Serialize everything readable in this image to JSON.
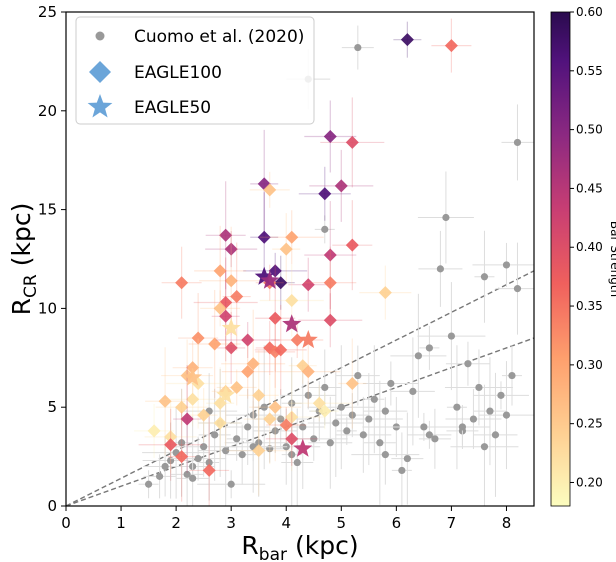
{
  "chart_data": {
    "type": "scatter",
    "xlabel": "R",
    "xlabel_sub": "bar",
    "xlabel_unit": "(kpc)",
    "ylabel": "R",
    "ylabel_sub": "CR",
    "ylabel_unit": "(kpc)",
    "xlim": [
      0,
      8.5
    ],
    "ylim": [
      0,
      25
    ],
    "xticks": [
      0,
      1,
      2,
      3,
      4,
      5,
      6,
      7,
      8
    ],
    "yticks": [
      0,
      5,
      10,
      15,
      20,
      25
    ],
    "grid": false,
    "legend_position": "top-left",
    "colorbar": {
      "label": "Bar Strength",
      "range": [
        0.18,
        0.6
      ],
      "ticks": [
        "0.20",
        "0.25",
        "0.30",
        "0.35",
        "0.40",
        "0.45",
        "0.50",
        "0.55",
        "0.60"
      ],
      "colormap": "magma_r"
    },
    "reference_lines": [
      {
        "style": "dashed",
        "color": "#777777",
        "slope": 1.4
      },
      {
        "style": "dashed",
        "color": "#777777",
        "slope": 1.0
      }
    ],
    "series": [
      {
        "name": "Cuomo et al. (2020)",
        "marker": "circle",
        "color": "#999999",
        "points": [
          [
            1.5,
            1.1
          ],
          [
            1.7,
            1.5
          ],
          [
            1.8,
            2.0
          ],
          [
            1.9,
            2.3
          ],
          [
            2.0,
            2.7
          ],
          [
            2.1,
            3.2
          ],
          [
            2.2,
            1.6
          ],
          [
            2.3,
            2.0
          ],
          [
            2.4,
            2.4
          ],
          [
            2.5,
            3.0
          ],
          [
            2.6,
            2.2
          ],
          [
            2.7,
            3.6
          ],
          [
            2.8,
            4.2
          ],
          [
            2.9,
            2.8
          ],
          [
            3.0,
            1.1
          ],
          [
            3.1,
            3.4
          ],
          [
            3.2,
            2.6
          ],
          [
            3.3,
            4.0
          ],
          [
            3.4,
            4.6
          ],
          [
            3.5,
            3.2
          ],
          [
            3.6,
            5.0
          ],
          [
            3.7,
            2.9
          ],
          [
            3.8,
            3.8
          ],
          [
            3.9,
            4.4
          ],
          [
            4.0,
            3.0
          ],
          [
            4.1,
            5.2
          ],
          [
            4.2,
            2.2
          ],
          [
            4.3,
            4.0
          ],
          [
            4.4,
            5.6
          ],
          [
            4.5,
            3.4
          ],
          [
            4.6,
            4.8
          ],
          [
            4.7,
            6.0
          ],
          [
            4.8,
            3.2
          ],
          [
            4.9,
            4.2
          ],
          [
            5.0,
            5.0
          ],
          [
            5.1,
            3.8
          ],
          [
            5.2,
            4.6
          ],
          [
            5.3,
            6.6
          ],
          [
            5.4,
            3.6
          ],
          [
            5.5,
            4.4
          ],
          [
            5.6,
            5.4
          ],
          [
            5.7,
            3.2
          ],
          [
            5.8,
            4.8
          ],
          [
            5.9,
            6.2
          ],
          [
            6.0,
            4.0
          ],
          [
            6.1,
            1.8
          ],
          [
            6.2,
            2.4
          ],
          [
            6.3,
            5.8
          ],
          [
            6.4,
            7.6
          ],
          [
            6.5,
            4.0
          ],
          [
            6.6,
            8.0
          ],
          [
            6.7,
            3.4
          ],
          [
            6.8,
            12.0
          ],
          [
            6.9,
            14.6
          ],
          [
            7.0,
            8.6
          ],
          [
            7.1,
            5.0
          ],
          [
            7.2,
            3.8
          ],
          [
            7.3,
            7.2
          ],
          [
            7.4,
            4.4
          ],
          [
            7.5,
            6.0
          ],
          [
            7.6,
            11.6
          ],
          [
            7.7,
            4.8
          ],
          [
            7.8,
            3.6
          ],
          [
            7.9,
            5.6
          ],
          [
            8.0,
            12.2
          ],
          [
            8.1,
            6.6
          ],
          [
            8.2,
            18.4
          ],
          [
            8.2,
            11.0
          ],
          [
            8.0,
            4.6
          ],
          [
            7.6,
            3.0
          ],
          [
            4.7,
            14.0
          ],
          [
            5.3,
            23.2
          ],
          [
            4.4,
            21.6
          ],
          [
            2.6,
            4.8
          ],
          [
            3.4,
            3.0
          ],
          [
            4.1,
            2.6
          ],
          [
            2.3,
            1.4
          ],
          [
            6.6,
            3.6
          ],
          [
            7.2,
            4.0
          ],
          [
            5.8,
            2.6
          ]
        ]
      },
      {
        "name": "EAGLE100",
        "marker": "diamond",
        "points": [
          [
            6.2,
            23.6,
            0.58
          ],
          [
            7.0,
            23.3,
            0.36
          ],
          [
            4.8,
            18.7,
            0.5
          ],
          [
            5.2,
            18.4,
            0.4
          ],
          [
            3.6,
            16.3,
            0.5
          ],
          [
            3.7,
            16.0,
            0.26
          ],
          [
            4.7,
            15.8,
            0.56
          ],
          [
            5.0,
            16.2,
            0.46
          ],
          [
            3.6,
            13.6,
            0.56
          ],
          [
            2.9,
            13.7,
            0.46
          ],
          [
            3.0,
            13.0,
            0.46
          ],
          [
            4.1,
            13.6,
            0.3
          ],
          [
            4.0,
            13.0,
            0.26
          ],
          [
            5.2,
            13.2,
            0.38
          ],
          [
            4.8,
            12.7,
            0.44
          ],
          [
            3.8,
            11.9,
            0.56
          ],
          [
            3.9,
            11.3,
            0.58
          ],
          [
            2.1,
            11.3,
            0.34
          ],
          [
            2.8,
            11.9,
            0.3
          ],
          [
            3.0,
            11.4,
            0.28
          ],
          [
            3.7,
            11.3,
            0.34
          ],
          [
            4.4,
            11.2,
            0.42
          ],
          [
            4.8,
            11.3,
            0.34
          ],
          [
            2.9,
            10.3,
            0.38
          ],
          [
            3.1,
            10.6,
            0.34
          ],
          [
            2.8,
            10.0,
            0.26
          ],
          [
            5.8,
            10.8,
            0.24
          ],
          [
            4.1,
            10.4,
            0.22
          ],
          [
            2.9,
            9.6,
            0.42
          ],
          [
            3.8,
            9.5,
            0.38
          ],
          [
            4.2,
            8.4,
            0.34
          ],
          [
            4.8,
            9.4,
            0.4
          ],
          [
            3.0,
            8.0,
            0.4
          ],
          [
            2.4,
            8.5,
            0.32
          ],
          [
            2.7,
            8.2,
            0.3
          ],
          [
            3.3,
            8.4,
            0.42
          ],
          [
            3.7,
            8.0,
            0.36
          ],
          [
            3.8,
            7.8,
            0.34
          ],
          [
            3.9,
            7.9,
            0.36
          ],
          [
            3.4,
            7.2,
            0.28
          ],
          [
            4.3,
            7.1,
            0.24
          ],
          [
            2.3,
            7.0,
            0.28
          ],
          [
            2.2,
            6.6,
            0.26
          ],
          [
            2.4,
            6.2,
            0.22
          ],
          [
            2.9,
            5.8,
            0.24
          ],
          [
            3.1,
            6.0,
            0.26
          ],
          [
            3.3,
            6.8,
            0.3
          ],
          [
            4.4,
            6.8,
            0.28
          ],
          [
            5.2,
            6.2,
            0.26
          ],
          [
            1.8,
            5.3,
            0.26
          ],
          [
            2.1,
            5.0,
            0.24
          ],
          [
            2.3,
            5.4,
            0.22
          ],
          [
            2.8,
            5.2,
            0.22
          ],
          [
            3.5,
            5.6,
            0.24
          ],
          [
            3.8,
            5.0,
            0.26
          ],
          [
            4.6,
            5.2,
            0.22
          ],
          [
            2.5,
            4.6,
            0.24
          ],
          [
            2.8,
            4.2,
            0.22
          ],
          [
            3.7,
            4.4,
            0.24
          ],
          [
            4.1,
            4.5,
            0.22
          ],
          [
            4.7,
            4.8,
            0.2
          ],
          [
            1.6,
            3.8,
            0.2
          ],
          [
            1.9,
            3.5,
            0.22
          ],
          [
            3.5,
            2.8,
            0.24
          ],
          [
            2.2,
            4.4,
            0.44
          ],
          [
            4.0,
            4.1,
            0.34
          ],
          [
            4.1,
            3.4,
            0.4
          ],
          [
            1.9,
            3.1,
            0.38
          ],
          [
            2.1,
            2.5,
            0.36
          ],
          [
            2.6,
            1.8,
            0.36
          ]
        ]
      },
      {
        "name": "EAGLE50",
        "marker": "star",
        "points": [
          [
            3.6,
            11.6,
            0.56
          ],
          [
            3.7,
            11.4,
            0.48
          ],
          [
            4.1,
            9.2,
            0.46
          ],
          [
            3.0,
            9.0,
            0.22
          ],
          [
            4.3,
            2.9,
            0.44
          ],
          [
            2.3,
            6.5,
            0.26
          ],
          [
            2.9,
            5.6,
            0.22
          ],
          [
            4.4,
            8.4,
            0.34
          ]
        ]
      }
    ]
  }
}
